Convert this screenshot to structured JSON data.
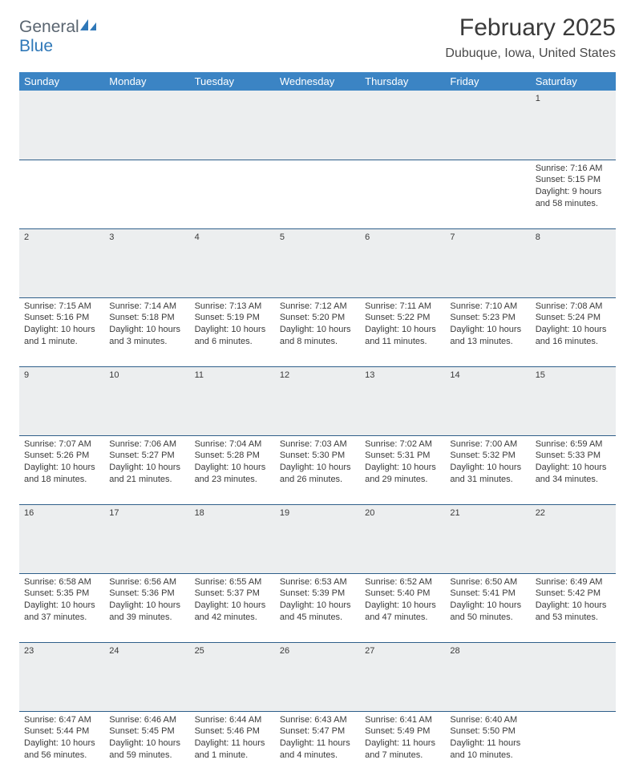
{
  "logo": {
    "general": "General",
    "blue": "Blue"
  },
  "title": "February 2025",
  "location": "Dubuque, Iowa, United States",
  "colors": {
    "header_bg": "#3b84c4",
    "header_text": "#ffffff",
    "daynum_bg": "#eceeef",
    "row_border": "#2f5f8a",
    "body_text": "#3a3a3a",
    "logo_general": "#5a6570",
    "logo_blue": "#2f78b8"
  },
  "day_headers": [
    "Sunday",
    "Monday",
    "Tuesday",
    "Wednesday",
    "Thursday",
    "Friday",
    "Saturday"
  ],
  "weeks": [
    [
      {
        "n": "",
        "sr": "",
        "ss": "",
        "dl1": "",
        "dl2": ""
      },
      {
        "n": "",
        "sr": "",
        "ss": "",
        "dl1": "",
        "dl2": ""
      },
      {
        "n": "",
        "sr": "",
        "ss": "",
        "dl1": "",
        "dl2": ""
      },
      {
        "n": "",
        "sr": "",
        "ss": "",
        "dl1": "",
        "dl2": ""
      },
      {
        "n": "",
        "sr": "",
        "ss": "",
        "dl1": "",
        "dl2": ""
      },
      {
        "n": "",
        "sr": "",
        "ss": "",
        "dl1": "",
        "dl2": ""
      },
      {
        "n": "1",
        "sr": "Sunrise: 7:16 AM",
        "ss": "Sunset: 5:15 PM",
        "dl1": "Daylight: 9 hours",
        "dl2": "and 58 minutes."
      }
    ],
    [
      {
        "n": "2",
        "sr": "Sunrise: 7:15 AM",
        "ss": "Sunset: 5:16 PM",
        "dl1": "Daylight: 10 hours",
        "dl2": "and 1 minute."
      },
      {
        "n": "3",
        "sr": "Sunrise: 7:14 AM",
        "ss": "Sunset: 5:18 PM",
        "dl1": "Daylight: 10 hours",
        "dl2": "and 3 minutes."
      },
      {
        "n": "4",
        "sr": "Sunrise: 7:13 AM",
        "ss": "Sunset: 5:19 PM",
        "dl1": "Daylight: 10 hours",
        "dl2": "and 6 minutes."
      },
      {
        "n": "5",
        "sr": "Sunrise: 7:12 AM",
        "ss": "Sunset: 5:20 PM",
        "dl1": "Daylight: 10 hours",
        "dl2": "and 8 minutes."
      },
      {
        "n": "6",
        "sr": "Sunrise: 7:11 AM",
        "ss": "Sunset: 5:22 PM",
        "dl1": "Daylight: 10 hours",
        "dl2": "and 11 minutes."
      },
      {
        "n": "7",
        "sr": "Sunrise: 7:10 AM",
        "ss": "Sunset: 5:23 PM",
        "dl1": "Daylight: 10 hours",
        "dl2": "and 13 minutes."
      },
      {
        "n": "8",
        "sr": "Sunrise: 7:08 AM",
        "ss": "Sunset: 5:24 PM",
        "dl1": "Daylight: 10 hours",
        "dl2": "and 16 minutes."
      }
    ],
    [
      {
        "n": "9",
        "sr": "Sunrise: 7:07 AM",
        "ss": "Sunset: 5:26 PM",
        "dl1": "Daylight: 10 hours",
        "dl2": "and 18 minutes."
      },
      {
        "n": "10",
        "sr": "Sunrise: 7:06 AM",
        "ss": "Sunset: 5:27 PM",
        "dl1": "Daylight: 10 hours",
        "dl2": "and 21 minutes."
      },
      {
        "n": "11",
        "sr": "Sunrise: 7:04 AM",
        "ss": "Sunset: 5:28 PM",
        "dl1": "Daylight: 10 hours",
        "dl2": "and 23 minutes."
      },
      {
        "n": "12",
        "sr": "Sunrise: 7:03 AM",
        "ss": "Sunset: 5:30 PM",
        "dl1": "Daylight: 10 hours",
        "dl2": "and 26 minutes."
      },
      {
        "n": "13",
        "sr": "Sunrise: 7:02 AM",
        "ss": "Sunset: 5:31 PM",
        "dl1": "Daylight: 10 hours",
        "dl2": "and 29 minutes."
      },
      {
        "n": "14",
        "sr": "Sunrise: 7:00 AM",
        "ss": "Sunset: 5:32 PM",
        "dl1": "Daylight: 10 hours",
        "dl2": "and 31 minutes."
      },
      {
        "n": "15",
        "sr": "Sunrise: 6:59 AM",
        "ss": "Sunset: 5:33 PM",
        "dl1": "Daylight: 10 hours",
        "dl2": "and 34 minutes."
      }
    ],
    [
      {
        "n": "16",
        "sr": "Sunrise: 6:58 AM",
        "ss": "Sunset: 5:35 PM",
        "dl1": "Daylight: 10 hours",
        "dl2": "and 37 minutes."
      },
      {
        "n": "17",
        "sr": "Sunrise: 6:56 AM",
        "ss": "Sunset: 5:36 PM",
        "dl1": "Daylight: 10 hours",
        "dl2": "and 39 minutes."
      },
      {
        "n": "18",
        "sr": "Sunrise: 6:55 AM",
        "ss": "Sunset: 5:37 PM",
        "dl1": "Daylight: 10 hours",
        "dl2": "and 42 minutes."
      },
      {
        "n": "19",
        "sr": "Sunrise: 6:53 AM",
        "ss": "Sunset: 5:39 PM",
        "dl1": "Daylight: 10 hours",
        "dl2": "and 45 minutes."
      },
      {
        "n": "20",
        "sr": "Sunrise: 6:52 AM",
        "ss": "Sunset: 5:40 PM",
        "dl1": "Daylight: 10 hours",
        "dl2": "and 47 minutes."
      },
      {
        "n": "21",
        "sr": "Sunrise: 6:50 AM",
        "ss": "Sunset: 5:41 PM",
        "dl1": "Daylight: 10 hours",
        "dl2": "and 50 minutes."
      },
      {
        "n": "22",
        "sr": "Sunrise: 6:49 AM",
        "ss": "Sunset: 5:42 PM",
        "dl1": "Daylight: 10 hours",
        "dl2": "and 53 minutes."
      }
    ],
    [
      {
        "n": "23",
        "sr": "Sunrise: 6:47 AM",
        "ss": "Sunset: 5:44 PM",
        "dl1": "Daylight: 10 hours",
        "dl2": "and 56 minutes."
      },
      {
        "n": "24",
        "sr": "Sunrise: 6:46 AM",
        "ss": "Sunset: 5:45 PM",
        "dl1": "Daylight: 10 hours",
        "dl2": "and 59 minutes."
      },
      {
        "n": "25",
        "sr": "Sunrise: 6:44 AM",
        "ss": "Sunset: 5:46 PM",
        "dl1": "Daylight: 11 hours",
        "dl2": "and 1 minute."
      },
      {
        "n": "26",
        "sr": "Sunrise: 6:43 AM",
        "ss": "Sunset: 5:47 PM",
        "dl1": "Daylight: 11 hours",
        "dl2": "and 4 minutes."
      },
      {
        "n": "27",
        "sr": "Sunrise: 6:41 AM",
        "ss": "Sunset: 5:49 PM",
        "dl1": "Daylight: 11 hours",
        "dl2": "and 7 minutes."
      },
      {
        "n": "28",
        "sr": "Sunrise: 6:40 AM",
        "ss": "Sunset: 5:50 PM",
        "dl1": "Daylight: 11 hours",
        "dl2": "and 10 minutes."
      },
      {
        "n": "",
        "sr": "",
        "ss": "",
        "dl1": "",
        "dl2": ""
      }
    ]
  ]
}
